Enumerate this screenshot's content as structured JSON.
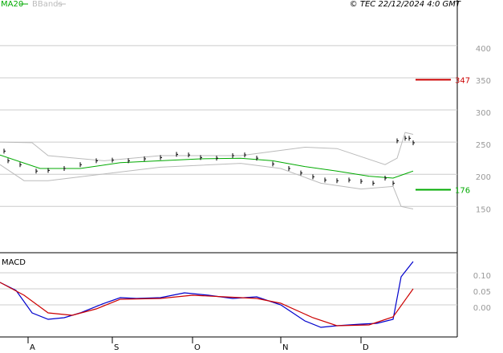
{
  "copyright": "© TEC 22/12/2024 4:0 GMT",
  "chart_data": [
    {
      "type": "price",
      "xlim": [
        0,
        114
      ],
      "ylim": [
        78,
        471
      ],
      "yticks": [
        150,
        200,
        250,
        300,
        350,
        400
      ],
      "price": {
        "color": "#000000",
        "x": [
          1,
          2,
          5,
          9,
          12,
          16,
          20,
          24,
          28,
          32,
          36,
          40,
          44,
          47,
          50,
          54,
          58,
          61,
          64,
          68,
          72,
          75,
          78,
          81,
          84,
          87,
          90,
          93,
          96,
          98,
          99,
          101,
          102,
          103
        ],
        "values": [
          236,
          221,
          215,
          205,
          206,
          209,
          215,
          221,
          222,
          221,
          224,
          226,
          231,
          230,
          226,
          225,
          229,
          230,
          225,
          216,
          209,
          202,
          196,
          191,
          190,
          191,
          189,
          186,
          194,
          186,
          252,
          256,
          256,
          249
        ]
      },
      "ma": {
        "name": "MA20",
        "color": "#00aa00",
        "x": [
          0,
          10,
          20,
          30,
          40,
          50,
          60,
          68,
          76,
          84,
          92,
          98,
          103
        ],
        "values": [
          230,
          209,
          209,
          218,
          221,
          224,
          225,
          221,
          212,
          205,
          197,
          194,
          205
        ]
      },
      "bands": {
        "name": "BBands",
        "color": "#bbbbbb",
        "upper": {
          "x": [
            0,
            8,
            12,
            26,
            40,
            60,
            76,
            84,
            96,
            99,
            101,
            103
          ],
          "values": [
            250,
            249,
            229,
            221,
            229,
            229,
            242,
            240,
            215,
            225,
            265,
            262
          ]
        },
        "lower": {
          "x": [
            0,
            6,
            12,
            20,
            40,
            60,
            70,
            80,
            90,
            98,
            100,
            103
          ],
          "values": [
            215,
            190,
            190,
            196,
            211,
            217,
            209,
            186,
            177,
            181,
            150,
            146
          ]
        }
      },
      "levels": [
        {
          "value": 347,
          "color": "#cc0000"
        },
        {
          "value": 176,
          "color": "#00aa00"
        }
      ]
    },
    {
      "type": "macd",
      "title": "MACD",
      "xlim": [
        0,
        114
      ],
      "ylim": [
        -0.1,
        0.1575
      ],
      "yticks": [
        {
          "value": 0.1,
          "label": "0.10"
        },
        {
          "value": 0.05,
          "label": "0.05"
        },
        {
          "value": 0,
          "label": "0.00"
        }
      ],
      "xticks": [
        {
          "value": 7,
          "label": "A"
        },
        {
          "value": 28,
          "label": "S"
        },
        {
          "value": 48,
          "label": "O"
        },
        {
          "value": 70,
          "label": "N"
        },
        {
          "value": 90,
          "label": "D"
        }
      ],
      "series": [
        {
          "color": "#0000cc",
          "x": [
            0,
            4,
            8,
            12,
            16,
            20,
            26,
            30,
            34,
            40,
            46,
            52,
            58,
            64,
            70,
            76,
            80,
            84,
            90,
            94,
            98,
            100,
            103
          ],
          "values": [
            0.07,
            0.045,
            -0.025,
            -0.045,
            -0.04,
            -0.025,
            0.005,
            0.0225,
            0.02,
            0.0225,
            0.0375,
            0.03,
            0.02,
            0.025,
            0,
            -0.05,
            -0.07,
            -0.065,
            -0.06,
            -0.0575,
            -0.045,
            0.0875,
            0.135
          ]
        },
        {
          "color": "#cc0000",
          "x": [
            0,
            6,
            12,
            18,
            24,
            30,
            40,
            48,
            56,
            64,
            70,
            78,
            84,
            92,
            98,
            103
          ],
          "values": [
            0.07,
            0.03,
            -0.025,
            -0.0325,
            -0.0125,
            0.0175,
            0.02,
            0.03,
            0.025,
            0.02,
            0.005,
            -0.04,
            -0.065,
            -0.0625,
            -0.0375,
            0.05
          ]
        }
      ]
    }
  ]
}
